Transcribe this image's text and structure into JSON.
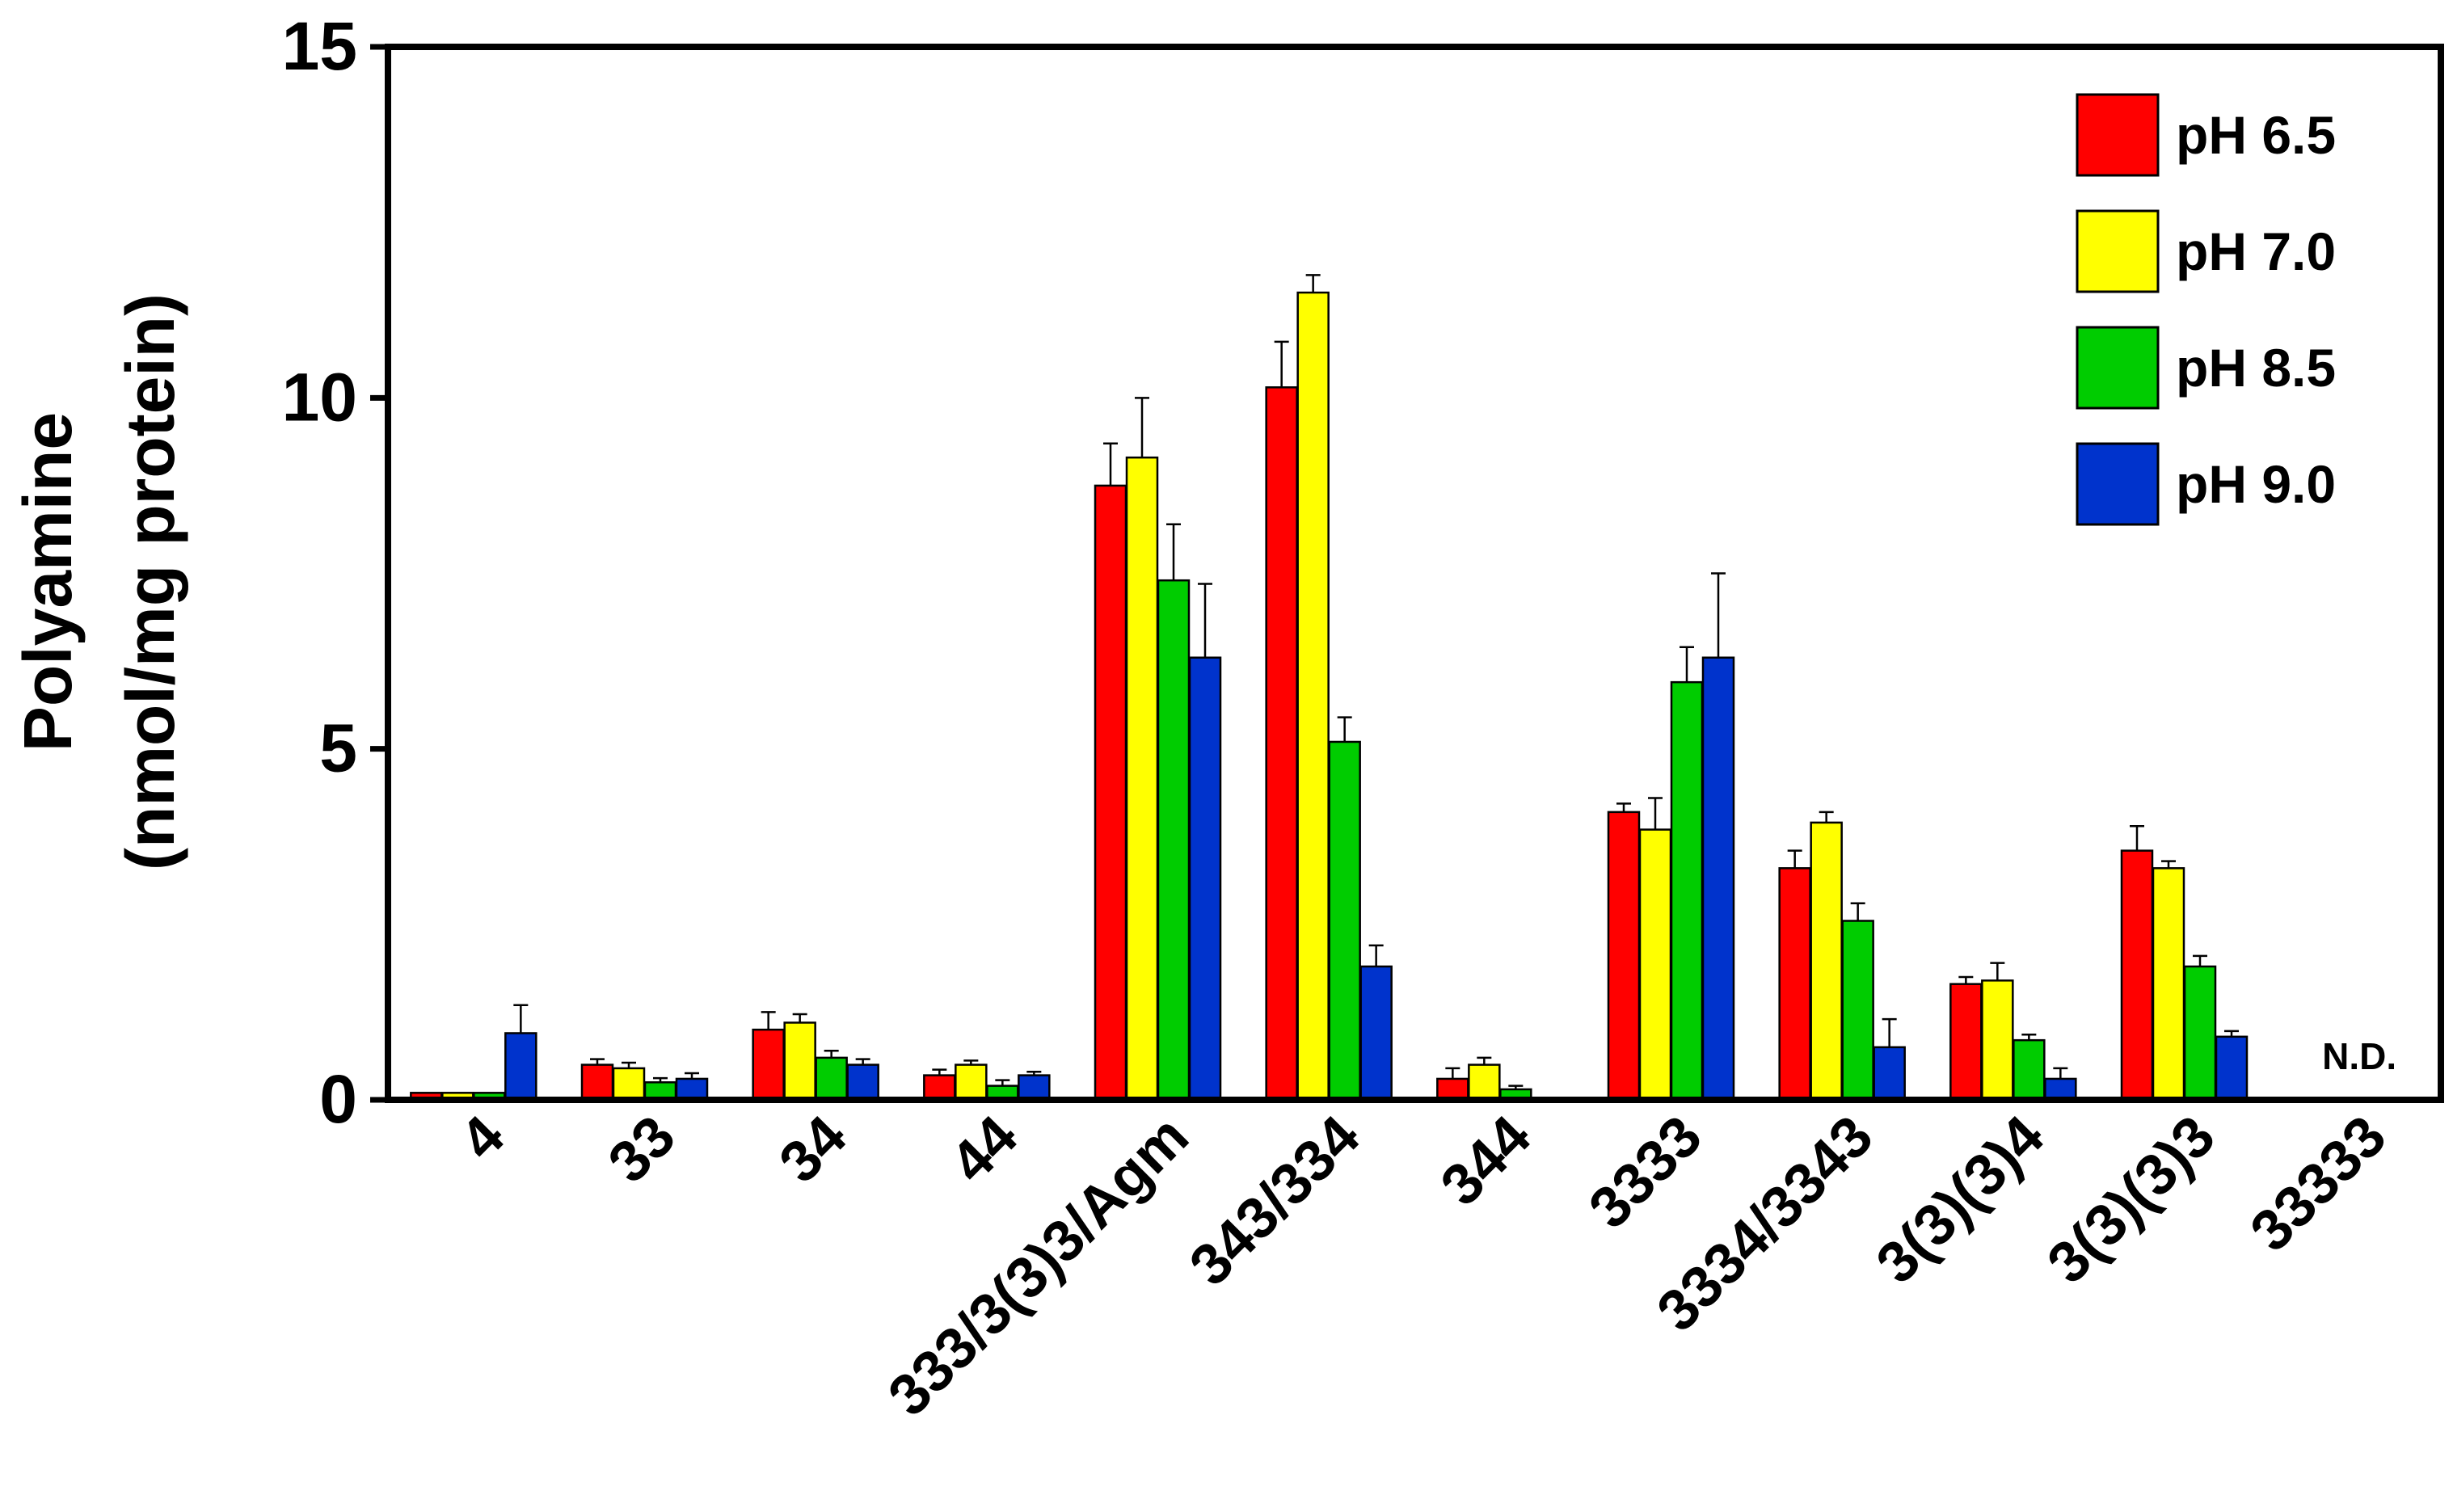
{
  "chart_data": {
    "type": "bar",
    "title": "",
    "xlabel": "",
    "ylabel_line1": "Polyamine",
    "ylabel_line2": "(nmol/mg protein)",
    "ylim": [
      0,
      15
    ],
    "yticks": [
      0,
      5,
      10,
      15
    ],
    "ytick_labels": [
      "0",
      "5",
      "10",
      "15"
    ],
    "grid": false,
    "legend_position": "top-right",
    "categories": [
      "4",
      "33",
      "34",
      "44",
      "333/3(3)3/Agm",
      "343/334",
      "344",
      "3333",
      "3334/3343",
      "3(3)(3)4",
      "3(3)(3)3",
      "33333"
    ],
    "series": [
      {
        "name": "pH 6.5",
        "color": "#ff0000",
        "values": [
          0.1,
          0.5,
          1.0,
          0.35,
          8.75,
          10.15,
          0.3,
          4.1,
          3.3,
          1.65,
          3.55,
          0
        ],
        "errors": [
          0.0,
          0.08,
          0.25,
          0.08,
          0.6,
          0.65,
          0.15,
          0.12,
          0.25,
          0.1,
          0.35,
          0
        ]
      },
      {
        "name": "pH 7.0",
        "color": "#ffff00",
        "values": [
          0.1,
          0.45,
          1.1,
          0.5,
          9.15,
          11.5,
          0.5,
          3.85,
          3.95,
          1.7,
          3.3,
          0
        ],
        "errors": [
          0.0,
          0.08,
          0.12,
          0.06,
          0.85,
          0.25,
          0.1,
          0.45,
          0.15,
          0.25,
          0.1,
          0
        ]
      },
      {
        "name": "pH 8.5",
        "color": "#00cc00",
        "values": [
          0.1,
          0.25,
          0.6,
          0.2,
          7.4,
          5.1,
          0.15,
          5.95,
          2.55,
          0.85,
          1.9,
          0
        ],
        "errors": [
          0.0,
          0.06,
          0.1,
          0.08,
          0.8,
          0.35,
          0.05,
          0.5,
          0.25,
          0.08,
          0.15,
          0
        ]
      },
      {
        "name": "pH 9.0",
        "color": "#0033cc",
        "values": [
          0.95,
          0.3,
          0.5,
          0.35,
          6.3,
          1.9,
          0,
          6.3,
          0.75,
          0.3,
          0.9,
          0
        ],
        "errors": [
          0.4,
          0.08,
          0.08,
          0.05,
          1.05,
          0.3,
          0,
          1.2,
          0.4,
          0.15,
          0.08,
          0
        ]
      }
    ],
    "annotations": [
      {
        "category": "33333",
        "text": "N.D."
      }
    ]
  }
}
